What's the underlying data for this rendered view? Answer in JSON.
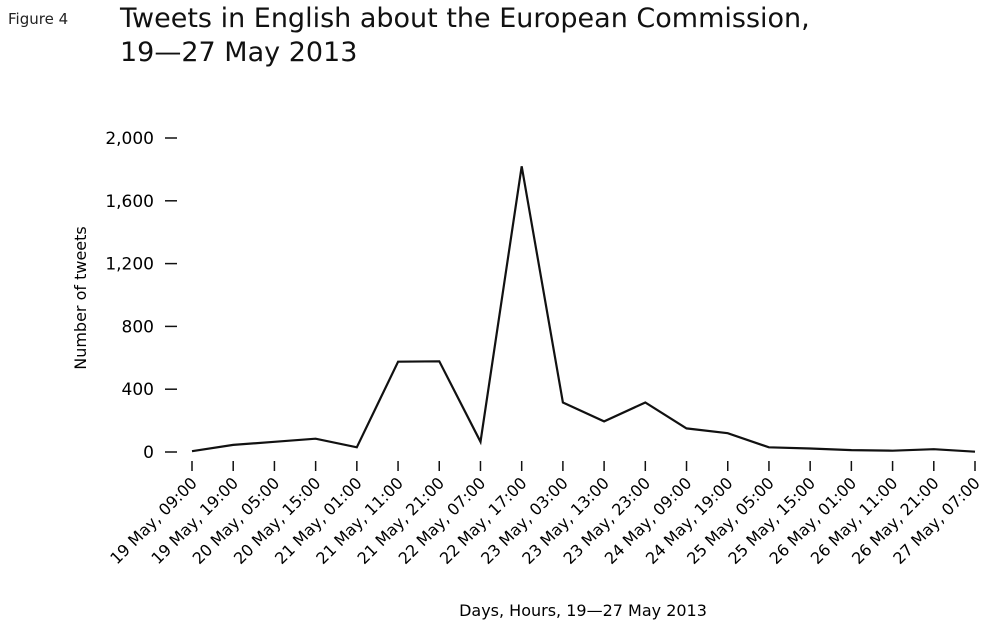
{
  "figure_label": "Figure 4",
  "title_line1": "Tweets in English about the European Commission,",
  "title_line2": "19—27 May 2013",
  "chart_data": {
    "type": "line",
    "title": "Tweets in English about the European Commission, 19—27 May 2013",
    "xlabel": "Days, Hours, 19—27 May 2013",
    "ylabel": "Number of tweets",
    "ylim": [
      0,
      2000
    ],
    "yticks": [
      0,
      400,
      800,
      1200,
      1600,
      2000
    ],
    "ytick_labels": [
      "0",
      "400",
      "800",
      "1,200",
      "1,600",
      "2,000"
    ],
    "grid": false,
    "categories": [
      "19 May, 09:00",
      "19 May, 19:00",
      "20 May, 05:00",
      "20 May, 15:00",
      "21 May, 01:00",
      "21 May, 11:00",
      "21 May, 21:00",
      "22 May, 07:00",
      "22 May, 17:00",
      "23 May, 03:00",
      "23 May, 13:00",
      "23 May, 23:00",
      "24 May, 09:00",
      "24 May, 19:00",
      "25 May, 05:00",
      "25 May, 15:00",
      "26 May, 01:00",
      "26 May, 11:00",
      "26 May, 21:00",
      "27 May, 07:00"
    ],
    "series": [
      {
        "values": [
          5,
          45,
          65,
          85,
          30,
          575,
          578,
          65,
          1820,
          315,
          195,
          315,
          150,
          120,
          30,
          22,
          12,
          8,
          18,
          2
        ]
      }
    ],
    "line_color": "#111111"
  }
}
